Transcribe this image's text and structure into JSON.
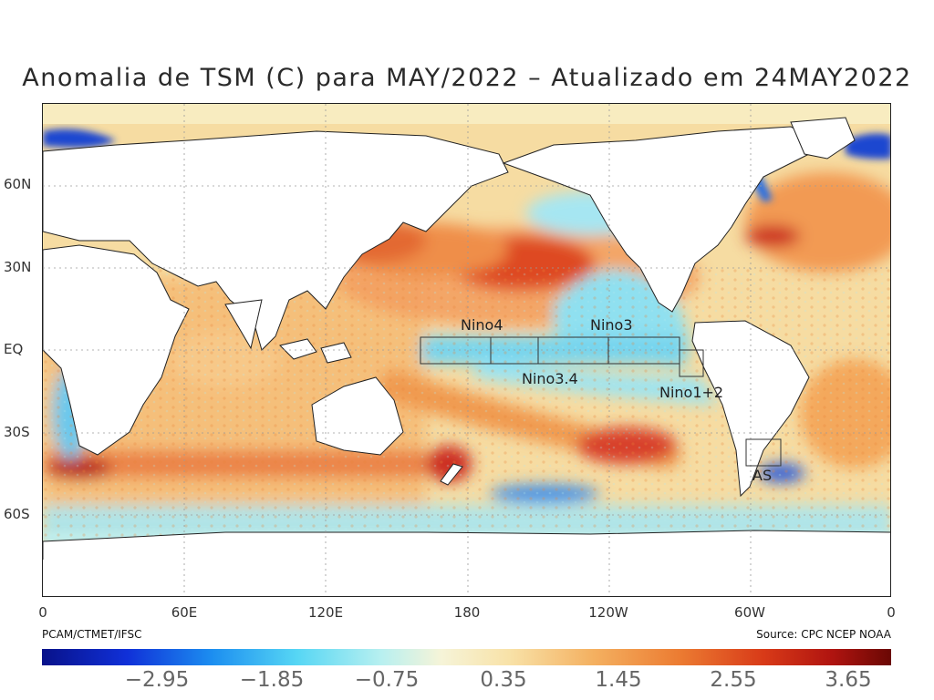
{
  "title": "Anomalia de TSM (C) para MAY/2022 – Atualizado em 24MAY2022",
  "latitude_labels": [
    "60N",
    "30N",
    "EQ",
    "30S",
    "60S"
  ],
  "longitude_labels": [
    "0",
    "60E",
    "120E",
    "180",
    "120W",
    "60W",
    "0"
  ],
  "regions": [
    "Nino4",
    "Nino3",
    "Nino3.4",
    "Nino1+2",
    "AS"
  ],
  "credit_left": "PCAM/CTMET/IFSC",
  "credit_right": "Source: CPC NCEP NOAA",
  "colorbar_labels": [
    "−2.95",
    "−1.85",
    "−0.75",
    "0.35",
    "1.45",
    "2.55",
    "3.65"
  ],
  "colors": {
    "land": "#ffffff",
    "ocean_neutral": "#f4e8b8",
    "warm": "#f0a050",
    "hot": "#d8381c",
    "cool": "#8ee2f0",
    "cold": "#1a6ee8"
  }
}
